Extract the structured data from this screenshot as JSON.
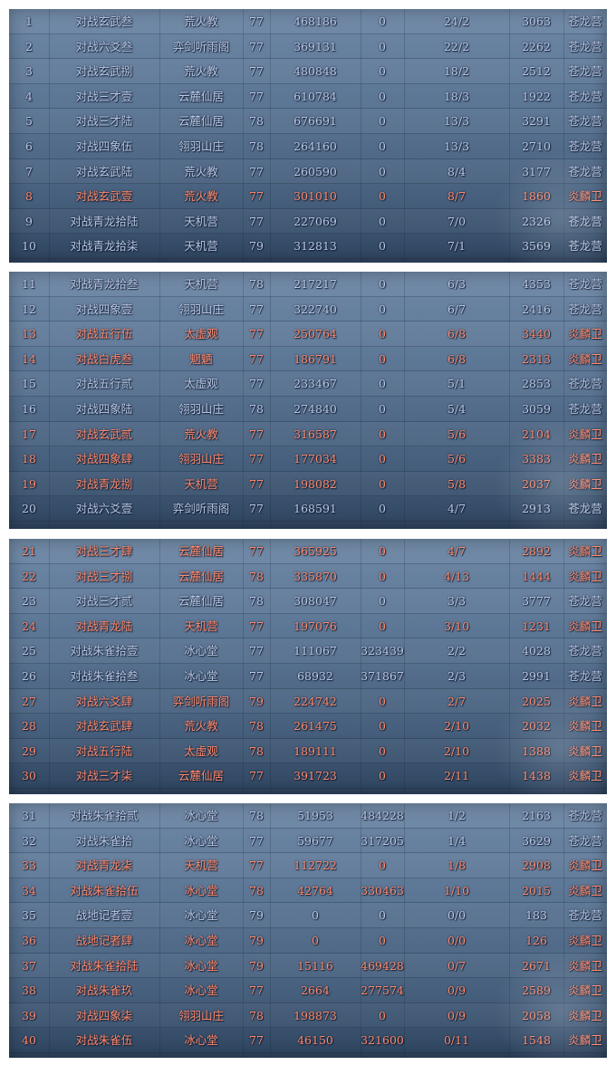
{
  "panels": [
    {
      "rows": [
        {
          "rank": "1",
          "name": "对战玄武叁",
          "sect": "荒火教",
          "level": "77",
          "score": "468186",
          "extra": "0",
          "record": "24/2",
          "points": "3063",
          "faction": "苍龙营",
          "side": "blue"
        },
        {
          "rank": "2",
          "name": "对战六爻叁",
          "sect": "弈剑听雨阁",
          "level": "77",
          "score": "369131",
          "extra": "0",
          "record": "22/2",
          "points": "2262",
          "faction": "苍龙营",
          "side": "blue"
        },
        {
          "rank": "3",
          "name": "对战玄武捌",
          "sect": "荒火教",
          "level": "77",
          "score": "480848",
          "extra": "0",
          "record": "18/2",
          "points": "2512",
          "faction": "苍龙营",
          "side": "blue"
        },
        {
          "rank": "4",
          "name": "对战三才壹",
          "sect": "云麓仙居",
          "level": "77",
          "score": "610784",
          "extra": "0",
          "record": "18/3",
          "points": "1922",
          "faction": "苍龙营",
          "side": "blue"
        },
        {
          "rank": "5",
          "name": "对战三才陆",
          "sect": "云麓仙居",
          "level": "78",
          "score": "676691",
          "extra": "0",
          "record": "13/3",
          "points": "3291",
          "faction": "苍龙营",
          "side": "blue"
        },
        {
          "rank": "6",
          "name": "对战四象伍",
          "sect": "翎羽山庄",
          "level": "78",
          "score": "264160",
          "extra": "0",
          "record": "13/3",
          "points": "2710",
          "faction": "苍龙营",
          "side": "blue"
        },
        {
          "rank": "7",
          "name": "对战玄武陆",
          "sect": "荒火教",
          "level": "77",
          "score": "260590",
          "extra": "0",
          "record": "8/4",
          "points": "3177",
          "faction": "苍龙营",
          "side": "blue"
        },
        {
          "rank": "8",
          "name": "对战玄武壹",
          "sect": "荒火教",
          "level": "77",
          "score": "301010",
          "extra": "0",
          "record": "8/7",
          "points": "1860",
          "faction": "炎麟卫",
          "side": "red"
        },
        {
          "rank": "9",
          "name": "对战青龙拾陆",
          "sect": "天机营",
          "level": "77",
          "score": "227069",
          "extra": "0",
          "record": "7/0",
          "points": "2326",
          "faction": "苍龙营",
          "side": "blue"
        },
        {
          "rank": "10",
          "name": "对战青龙拾柒",
          "sect": "天机营",
          "level": "79",
          "score": "312813",
          "extra": "0",
          "record": "7/1",
          "points": "3569",
          "faction": "苍龙营",
          "side": "blue"
        }
      ]
    },
    {
      "rows": [
        {
          "rank": "11",
          "name": "对战青龙拾叁",
          "sect": "天机营",
          "level": "78",
          "score": "217217",
          "extra": "0",
          "record": "6/3",
          "points": "4353",
          "faction": "苍龙营",
          "side": "blue"
        },
        {
          "rank": "12",
          "name": "对战四象壹",
          "sect": "翎羽山庄",
          "level": "77",
          "score": "322740",
          "extra": "0",
          "record": "6/7",
          "points": "2416",
          "faction": "苍龙营",
          "side": "blue"
        },
        {
          "rank": "13",
          "name": "对战五行伍",
          "sect": "太虚观",
          "level": "77",
          "score": "250764",
          "extra": "0",
          "record": "6/8",
          "points": "3440",
          "faction": "炎麟卫",
          "side": "red"
        },
        {
          "rank": "14",
          "name": "对战白虎叁",
          "sect": "魍魉",
          "level": "77",
          "score": "186791",
          "extra": "0",
          "record": "6/8",
          "points": "2313",
          "faction": "炎麟卫",
          "side": "red"
        },
        {
          "rank": "15",
          "name": "对战五行贰",
          "sect": "太虚观",
          "level": "77",
          "score": "233467",
          "extra": "0",
          "record": "5/1",
          "points": "2853",
          "faction": "苍龙营",
          "side": "blue"
        },
        {
          "rank": "16",
          "name": "对战四象陆",
          "sect": "翎羽山庄",
          "level": "78",
          "score": "274840",
          "extra": "0",
          "record": "5/4",
          "points": "3059",
          "faction": "苍龙营",
          "side": "blue"
        },
        {
          "rank": "17",
          "name": "对战玄武贰",
          "sect": "荒火教",
          "level": "77",
          "score": "316587",
          "extra": "0",
          "record": "5/6",
          "points": "2104",
          "faction": "炎麟卫",
          "side": "red"
        },
        {
          "rank": "18",
          "name": "对战四象肆",
          "sect": "翎羽山庄",
          "level": "77",
          "score": "177034",
          "extra": "0",
          "record": "5/6",
          "points": "3383",
          "faction": "炎麟卫",
          "side": "red"
        },
        {
          "rank": "19",
          "name": "对战青龙捌",
          "sect": "天机营",
          "level": "77",
          "score": "198082",
          "extra": "0",
          "record": "5/8",
          "points": "2037",
          "faction": "炎麟卫",
          "side": "red"
        },
        {
          "rank": "20",
          "name": "对战六爻壹",
          "sect": "弈剑听雨阁",
          "level": "77",
          "score": "168591",
          "extra": "0",
          "record": "4/7",
          "points": "2913",
          "faction": "苍龙营",
          "side": "blue"
        }
      ]
    },
    {
      "rows": [
        {
          "rank": "21",
          "name": "对战三才肆",
          "sect": "云麓仙居",
          "level": "77",
          "score": "365925",
          "extra": "0",
          "record": "4/7",
          "points": "2892",
          "faction": "炎麟卫",
          "side": "red"
        },
        {
          "rank": "22",
          "name": "对战三才捌",
          "sect": "云麓仙居",
          "level": "78",
          "score": "335870",
          "extra": "0",
          "record": "4/13",
          "points": "1444",
          "faction": "炎麟卫",
          "side": "red"
        },
        {
          "rank": "23",
          "name": "对战三才贰",
          "sect": "云麓仙居",
          "level": "78",
          "score": "308047",
          "extra": "0",
          "record": "3/3",
          "points": "3777",
          "faction": "苍龙营",
          "side": "blue"
        },
        {
          "rank": "24",
          "name": "对战青龙陆",
          "sect": "天机营",
          "level": "77",
          "score": "197076",
          "extra": "0",
          "record": "3/10",
          "points": "1231",
          "faction": "炎麟卫",
          "side": "red"
        },
        {
          "rank": "25",
          "name": "对战朱雀拾壹",
          "sect": "冰心堂",
          "level": "77",
          "score": "111067",
          "extra": "323439",
          "record": "2/2",
          "points": "4028",
          "faction": "苍龙营",
          "side": "blue"
        },
        {
          "rank": "26",
          "name": "对战朱雀拾叁",
          "sect": "冰心堂",
          "level": "77",
          "score": "68932",
          "extra": "371867",
          "record": "2/3",
          "points": "2991",
          "faction": "苍龙营",
          "side": "blue"
        },
        {
          "rank": "27",
          "name": "对战六爻肆",
          "sect": "弈剑听雨阁",
          "level": "79",
          "score": "224742",
          "extra": "0",
          "record": "2/7",
          "points": "2025",
          "faction": "炎麟卫",
          "side": "red"
        },
        {
          "rank": "28",
          "name": "对战玄武肆",
          "sect": "荒火教",
          "level": "78",
          "score": "261475",
          "extra": "0",
          "record": "2/10",
          "points": "2032",
          "faction": "炎麟卫",
          "side": "red"
        },
        {
          "rank": "29",
          "name": "对战五行陆",
          "sect": "太虚观",
          "level": "78",
          "score": "189111",
          "extra": "0",
          "record": "2/10",
          "points": "1388",
          "faction": "炎麟卫",
          "side": "red"
        },
        {
          "rank": "30",
          "name": "对战三才柒",
          "sect": "云麓仙居",
          "level": "77",
          "score": "391723",
          "extra": "0",
          "record": "2/11",
          "points": "1438",
          "faction": "炎麟卫",
          "side": "red"
        }
      ]
    },
    {
      "rows": [
        {
          "rank": "31",
          "name": "对战朱雀拾贰",
          "sect": "冰心堂",
          "level": "78",
          "score": "51953",
          "extra": "484228",
          "record": "1/2",
          "points": "2163",
          "faction": "苍龙营",
          "side": "blue"
        },
        {
          "rank": "32",
          "name": "对战朱雀拾",
          "sect": "冰心堂",
          "level": "77",
          "score": "59677",
          "extra": "317205",
          "record": "1/4",
          "points": "3629",
          "faction": "苍龙营",
          "side": "blue"
        },
        {
          "rank": "33",
          "name": "对战青龙柒",
          "sect": "天机营",
          "level": "77",
          "score": "112722",
          "extra": "0",
          "record": "1/8",
          "points": "2908",
          "faction": "炎麟卫",
          "side": "red"
        },
        {
          "rank": "34",
          "name": "对战朱雀拾伍",
          "sect": "冰心堂",
          "level": "78",
          "score": "42764",
          "extra": "330463",
          "record": "1/10",
          "points": "2015",
          "faction": "炎麟卫",
          "side": "red"
        },
        {
          "rank": "35",
          "name": "战地记者壹",
          "sect": "冰心堂",
          "level": "79",
          "score": "0",
          "extra": "0",
          "record": "0/0",
          "points": "183",
          "faction": "苍龙营",
          "side": "blue"
        },
        {
          "rank": "36",
          "name": "战地记者肆",
          "sect": "冰心堂",
          "level": "79",
          "score": "0",
          "extra": "0",
          "record": "0/0",
          "points": "126",
          "faction": "炎麟卫",
          "side": "red"
        },
        {
          "rank": "37",
          "name": "对战朱雀拾陆",
          "sect": "冰心堂",
          "level": "79",
          "score": "15116",
          "extra": "469428",
          "record": "0/7",
          "points": "2671",
          "faction": "炎麟卫",
          "side": "red"
        },
        {
          "rank": "38",
          "name": "对战朱雀玖",
          "sect": "冰心堂",
          "level": "77",
          "score": "2664",
          "extra": "277574",
          "record": "0/9",
          "points": "2589",
          "faction": "炎麟卫",
          "side": "red"
        },
        {
          "rank": "39",
          "name": "对战四象柒",
          "sect": "翎羽山庄",
          "level": "78",
          "score": "198873",
          "extra": "0",
          "record": "0/9",
          "points": "2058",
          "faction": "炎麟卫",
          "side": "red"
        },
        {
          "rank": "40",
          "name": "对战朱雀伍",
          "sect": "冰心堂",
          "level": "77",
          "score": "46150",
          "extra": "321600",
          "record": "0/11",
          "points": "1548",
          "faction": "炎麟卫",
          "side": "red"
        }
      ]
    }
  ],
  "colors": {
    "blue_text": "#b9c8e6",
    "red_text": "#ff8a6c",
    "panel_top": "#6e88a6",
    "panel_bottom": "#2f4560"
  }
}
